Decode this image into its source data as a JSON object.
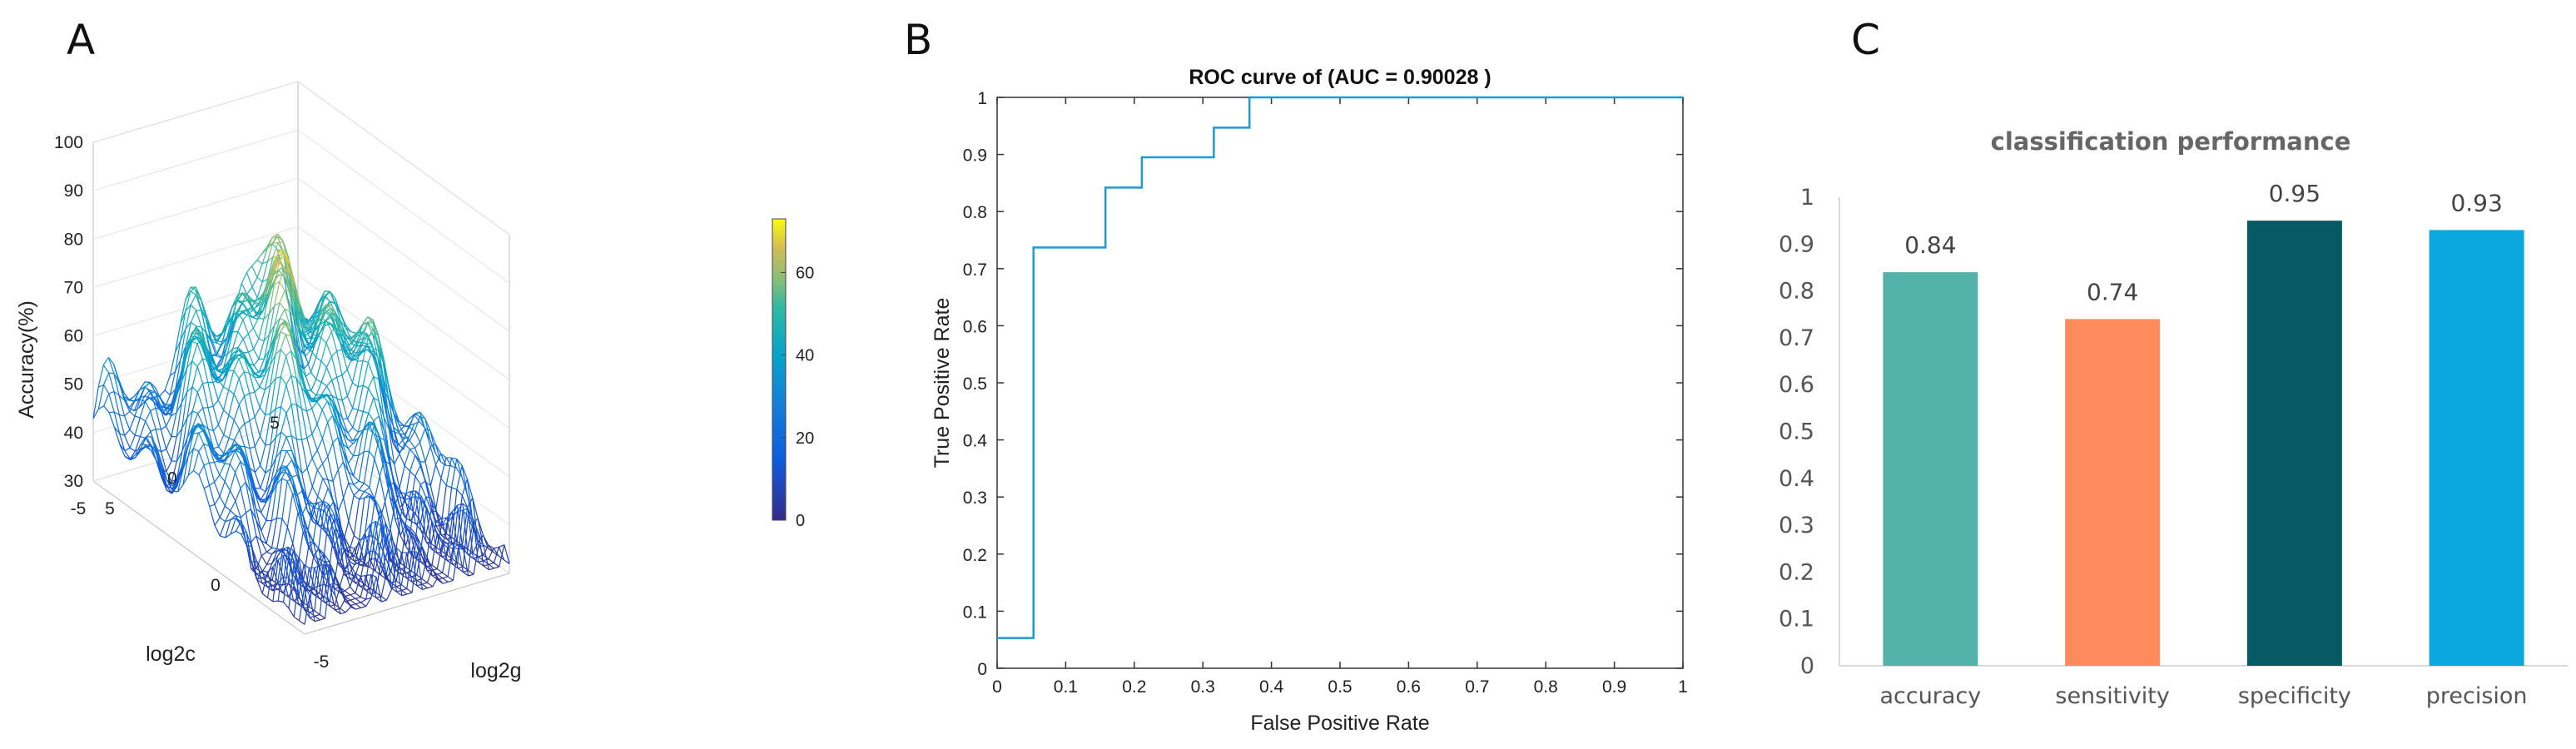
{
  "panels": {
    "a": "A",
    "b": "B",
    "c": "C"
  },
  "chart_data": [
    {
      "type": "surface",
      "panel": "A",
      "title": "",
      "zlabel": "Accuracy(%)",
      "xlabel": "log2c",
      "ylabel": "log2g",
      "zticks": [
        "30",
        "40",
        "50",
        "60",
        "70",
        "80",
        "90",
        "100"
      ],
      "zlim": [
        30,
        100
      ],
      "log2c_ticks": [
        "5",
        "0",
        "-5"
      ],
      "log2g_ticks": [
        "5",
        "0",
        "-5"
      ],
      "colorbar": {
        "ticks": [
          "0",
          "20",
          "40",
          "60"
        ],
        "range": [
          0,
          73
        ],
        "colormap": "parula"
      },
      "peak_accuracy_approx": 80,
      "floor_accuracy_approx": 30
    },
    {
      "type": "line",
      "panel": "B",
      "title": "ROC curve of (AUC = 0.90028 )",
      "xlabel": "False Positive Rate",
      "ylabel": "True Positive Rate",
      "xlim": [
        0,
        1
      ],
      "ylim": [
        0,
        1
      ],
      "xticks": [
        "0",
        "0.1",
        "0.2",
        "0.3",
        "0.4",
        "0.5",
        "0.6",
        "0.7",
        "0.8",
        "0.9",
        "1"
      ],
      "yticks": [
        "0",
        "0.1",
        "0.2",
        "0.3",
        "0.4",
        "0.5",
        "0.6",
        "0.7",
        "0.8",
        "0.9",
        "1"
      ],
      "line_color": "#1f9ad6",
      "x": [
        0,
        0.053,
        0.053,
        0.158,
        0.158,
        0.211,
        0.211,
        0.316,
        0.316,
        0.368,
        0.368,
        1.0
      ],
      "y": [
        0.053,
        0.053,
        0.737,
        0.737,
        0.842,
        0.842,
        0.895,
        0.895,
        0.947,
        0.947,
        1.0,
        1.0
      ]
    },
    {
      "type": "bar",
      "panel": "C",
      "title": "classification performance",
      "categories": [
        "accuracy",
        "sensitivity",
        "specificity",
        "precision"
      ],
      "values": [
        0.84,
        0.74,
        0.95,
        0.93
      ],
      "value_labels": [
        "0.84",
        "0.74",
        "0.95",
        "0.93"
      ],
      "colors": [
        "#53b3ab",
        "#ff8a5c",
        "#055a66",
        "#0aa8de"
      ],
      "ylim": [
        0,
        1
      ],
      "yticks": [
        "0",
        "0.1",
        "0.2",
        "0.3",
        "0.4",
        "0.5",
        "0.6",
        "0.7",
        "0.8",
        "0.9",
        "1"
      ]
    }
  ]
}
